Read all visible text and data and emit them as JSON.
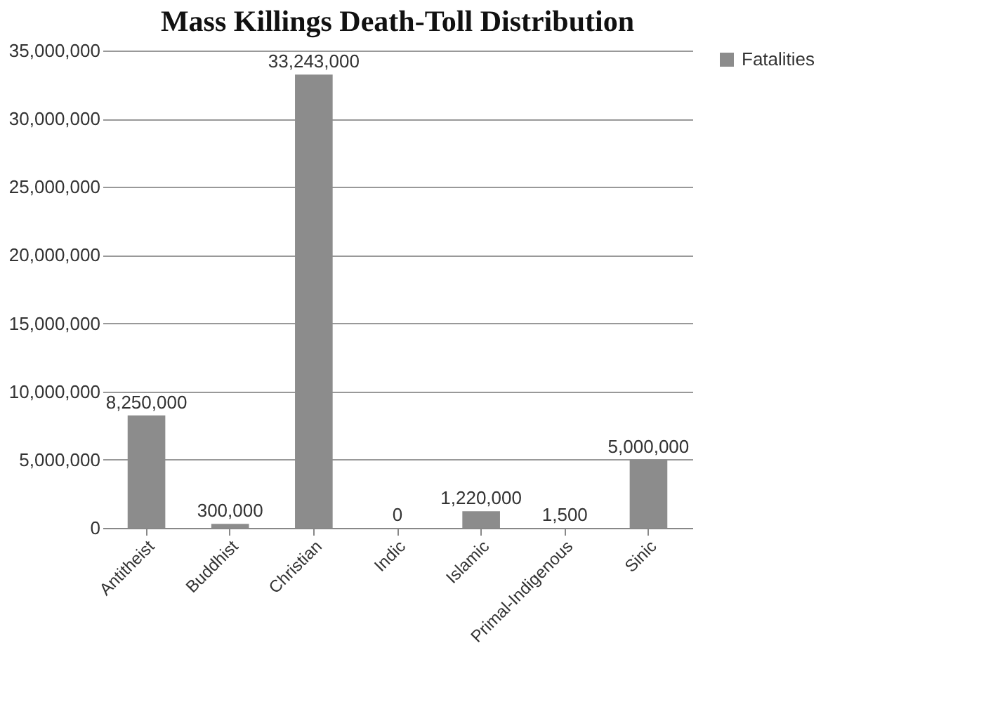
{
  "chart_data": {
    "type": "bar",
    "title": "Mass Killings Death-Toll Distribution",
    "categories": [
      "Antitheist",
      "Buddhist",
      "Christian",
      "Indic",
      "Islamic",
      "Primal-Indigenous",
      "Sinic"
    ],
    "series": [
      {
        "name": "Fatalities",
        "color": "#8c8c8c",
        "values": [
          8250000,
          300000,
          33243000,
          0,
          1220000,
          1500,
          5000000
        ],
        "value_labels": [
          "8,250,000",
          "300,000",
          "33,243,000",
          "0",
          "1,220,000",
          "1,500",
          "5,000,000"
        ]
      }
    ],
    "ylim": [
      0,
      35000000
    ],
    "yticks": [
      0,
      {
        "value": 5000000,
        "label": "5,000,000"
      },
      {
        "value": 10000000,
        "label": "10,000,000"
      },
      {
        "value": 15000000,
        "label": "15,000,000"
      },
      {
        "value": 20000000,
        "label": "20,000,000"
      },
      {
        "value": 25000000,
        "label": "25,000,000"
      },
      {
        "value": 30000000,
        "label": "30,000,000"
      },
      {
        "value": 35000000,
        "label": "35,000,000"
      }
    ],
    "grid": "y",
    "legend": "right"
  }
}
